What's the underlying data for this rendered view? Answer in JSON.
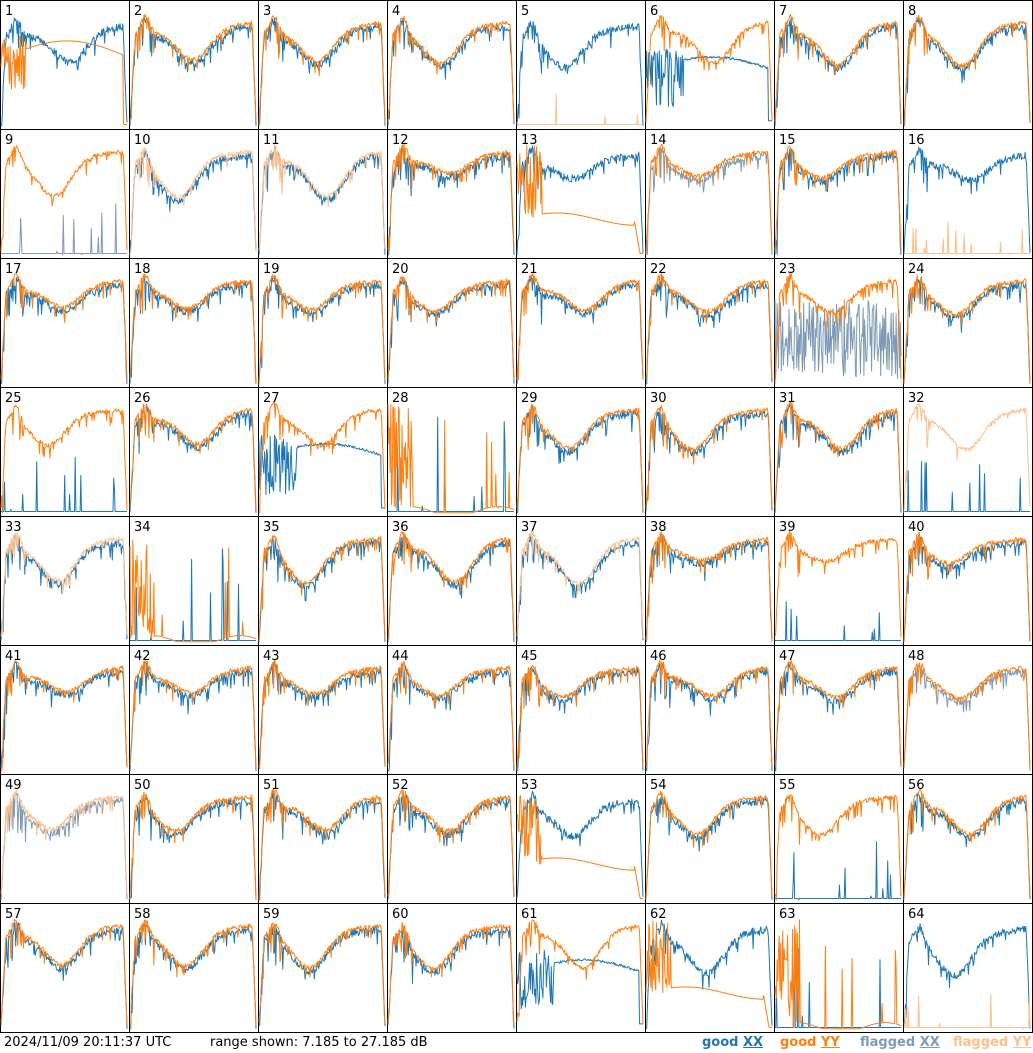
{
  "footer": {
    "timestamp": "2024/11/09 20:11:37 UTC",
    "range": "range shown: 7.185 to 27.185 dB"
  },
  "legend": [
    {
      "key": "good_xx",
      "prefix": "good",
      "suffix": "XX",
      "color": "#1f77b4"
    },
    {
      "key": "good_yy",
      "prefix": "good",
      "suffix": "YY",
      "color": "#ff7f0e"
    },
    {
      "key": "flagged_xx",
      "prefix": "flagged",
      "suffix": "XX",
      "color": "#7f9bb5"
    },
    {
      "key": "flagged_yy",
      "prefix": "flagged",
      "suffix": "YY",
      "color": "#ffbf8a"
    }
  ],
  "chart_data": {
    "type": "line",
    "grid": "8x8 small multiples",
    "ylim": [
      7.185,
      27.185
    ],
    "yunit": "dB",
    "panels": [
      {
        "label": "1",
        "xx": "good",
        "yy": "good",
        "shape": "yy_dip"
      },
      {
        "label": "2",
        "xx": "good",
        "yy": "good",
        "shape": "normal"
      },
      {
        "label": "3",
        "xx": "good",
        "yy": "good",
        "shape": "normal"
      },
      {
        "label": "4",
        "xx": "good",
        "yy": "good",
        "shape": "normal"
      },
      {
        "label": "5",
        "xx": "good",
        "yy": "flagged",
        "shape": "yy_spikes_low"
      },
      {
        "label": "6",
        "xx": "good",
        "yy": "good",
        "shape": "xx_dip"
      },
      {
        "label": "7",
        "xx": "good",
        "yy": "good",
        "shape": "normal"
      },
      {
        "label": "8",
        "xx": "good",
        "yy": "good",
        "shape": "normal"
      },
      {
        "label": "9",
        "xx": "flagged",
        "yy": "good",
        "shape": "xx_spikes_low"
      },
      {
        "label": "10",
        "xx": "good",
        "yy": "flagged",
        "shape": "normal"
      },
      {
        "label": "11",
        "xx": "good",
        "yy": "flagged",
        "shape": "normal"
      },
      {
        "label": "12",
        "xx": "good",
        "yy": "good",
        "shape": "normal"
      },
      {
        "label": "13",
        "xx": "good",
        "yy": "good",
        "shape": "yy_low_droop"
      },
      {
        "label": "14",
        "xx": "flagged",
        "yy": "good",
        "shape": "normal"
      },
      {
        "label": "15",
        "xx": "good",
        "yy": "good",
        "shape": "normal"
      },
      {
        "label": "16",
        "xx": "good",
        "yy": "flagged",
        "shape": "yy_spikes_low"
      },
      {
        "label": "17",
        "xx": "good",
        "yy": "good",
        "shape": "normal"
      },
      {
        "label": "18",
        "xx": "good",
        "yy": "good",
        "shape": "normal"
      },
      {
        "label": "19",
        "xx": "good",
        "yy": "good",
        "shape": "normal"
      },
      {
        "label": "20",
        "xx": "good",
        "yy": "good",
        "shape": "normal"
      },
      {
        "label": "21",
        "xx": "good",
        "yy": "good",
        "shape": "normal"
      },
      {
        "label": "22",
        "xx": "good",
        "yy": "good",
        "shape": "normal"
      },
      {
        "label": "23",
        "xx": "flagged",
        "yy": "good",
        "shape": "xx_noisy_low"
      },
      {
        "label": "24",
        "xx": "good",
        "yy": "good",
        "shape": "normal"
      },
      {
        "label": "25",
        "xx": "good",
        "yy": "good",
        "shape": "xx_spikes_low"
      },
      {
        "label": "26",
        "xx": "good",
        "yy": "good",
        "shape": "normal"
      },
      {
        "label": "27",
        "xx": "good",
        "yy": "good",
        "shape": "xx_dip"
      },
      {
        "label": "28",
        "xx": "good",
        "yy": "good",
        "shape": "yy_burst_low"
      },
      {
        "label": "29",
        "xx": "good",
        "yy": "good",
        "shape": "normal"
      },
      {
        "label": "30",
        "xx": "good",
        "yy": "good",
        "shape": "normal"
      },
      {
        "label": "31",
        "xx": "good",
        "yy": "good",
        "shape": "normal"
      },
      {
        "label": "32",
        "xx": "good",
        "yy": "flagged",
        "shape": "xx_spikes_low"
      },
      {
        "label": "33",
        "xx": "good",
        "yy": "flagged",
        "shape": "normal"
      },
      {
        "label": "34",
        "xx": "good",
        "yy": "good",
        "shape": "yy_burst_low"
      },
      {
        "label": "35",
        "xx": "good",
        "yy": "good",
        "shape": "normal"
      },
      {
        "label": "36",
        "xx": "good",
        "yy": "good",
        "shape": "normal"
      },
      {
        "label": "37",
        "xx": "good",
        "yy": "flagged",
        "shape": "normal"
      },
      {
        "label": "38",
        "xx": "good",
        "yy": "good",
        "shape": "normal"
      },
      {
        "label": "39",
        "xx": "good",
        "yy": "good",
        "shape": "xx_spikes_low"
      },
      {
        "label": "40",
        "xx": "good",
        "yy": "good",
        "shape": "normal"
      },
      {
        "label": "41",
        "xx": "good",
        "yy": "good",
        "shape": "normal"
      },
      {
        "label": "42",
        "xx": "good",
        "yy": "good",
        "shape": "normal"
      },
      {
        "label": "43",
        "xx": "good",
        "yy": "good",
        "shape": "normal"
      },
      {
        "label": "44",
        "xx": "good",
        "yy": "good",
        "shape": "normal"
      },
      {
        "label": "45",
        "xx": "good",
        "yy": "good",
        "shape": "normal"
      },
      {
        "label": "46",
        "xx": "good",
        "yy": "good",
        "shape": "normal"
      },
      {
        "label": "47",
        "xx": "good",
        "yy": "good",
        "shape": "normal"
      },
      {
        "label": "48",
        "xx": "flagged",
        "yy": "good",
        "shape": "normal"
      },
      {
        "label": "49",
        "xx": "flagged",
        "yy": "flagged",
        "shape": "normal"
      },
      {
        "label": "50",
        "xx": "good",
        "yy": "good",
        "shape": "normal"
      },
      {
        "label": "51",
        "xx": "good",
        "yy": "good",
        "shape": "normal"
      },
      {
        "label": "52",
        "xx": "good",
        "yy": "good",
        "shape": "normal"
      },
      {
        "label": "53",
        "xx": "good",
        "yy": "good",
        "shape": "yy_low_droop"
      },
      {
        "label": "54",
        "xx": "good",
        "yy": "good",
        "shape": "normal"
      },
      {
        "label": "55",
        "xx": "good",
        "yy": "good",
        "shape": "xx_spikes_low"
      },
      {
        "label": "56",
        "xx": "good",
        "yy": "good",
        "shape": "normal"
      },
      {
        "label": "57",
        "xx": "good",
        "yy": "good",
        "shape": "normal"
      },
      {
        "label": "58",
        "xx": "good",
        "yy": "good",
        "shape": "normal"
      },
      {
        "label": "59",
        "xx": "good",
        "yy": "good",
        "shape": "normal"
      },
      {
        "label": "60",
        "xx": "good",
        "yy": "good",
        "shape": "normal"
      },
      {
        "label": "61",
        "xx": "good",
        "yy": "good",
        "shape": "xx_dip"
      },
      {
        "label": "62",
        "xx": "good",
        "yy": "good",
        "shape": "yy_low_droop"
      },
      {
        "label": "63",
        "xx": "good",
        "yy": "good",
        "shape": "yy_burst_low"
      },
      {
        "label": "64",
        "xx": "good",
        "yy": "flagged",
        "shape": "yy_spikes_low"
      }
    ]
  }
}
